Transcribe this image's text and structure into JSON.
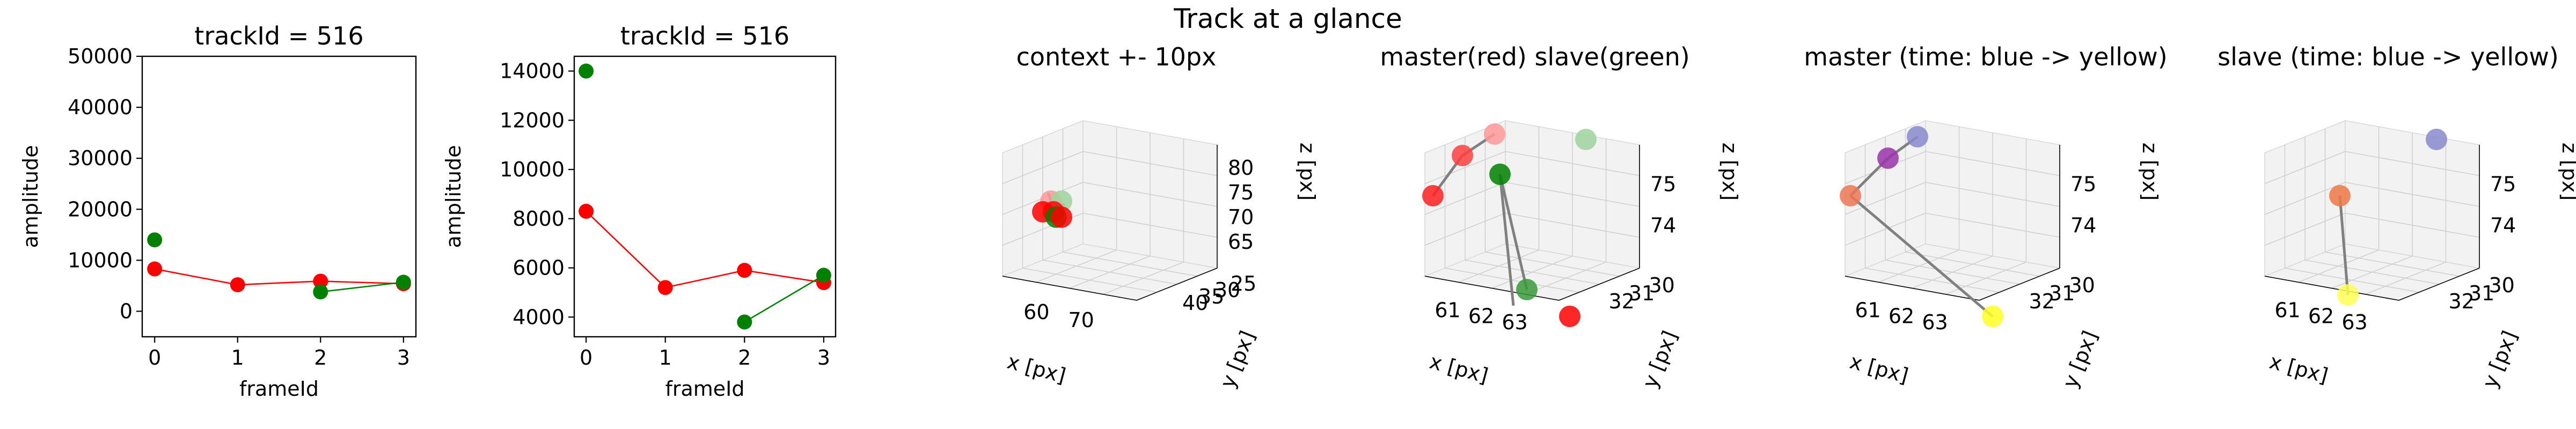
{
  "suptitle": "Track at a glance",
  "chart_data": [
    {
      "type": "line",
      "title": "trackId = 516",
      "xlabel": "frameId",
      "ylabel": "amplitude",
      "xlim": [
        -0.15,
        3.15
      ],
      "ylim": [
        -5000,
        50000
      ],
      "xticks": [
        0,
        1,
        2,
        3
      ],
      "yticks": [
        0,
        10000,
        20000,
        30000,
        40000,
        50000
      ],
      "series": [
        {
          "color": "#ff0000",
          "x": [
            0,
            1,
            2,
            3
          ],
          "y": [
            8300,
            5200,
            5900,
            5400
          ]
        },
        {
          "color": "#008000",
          "x": [
            2,
            3
          ],
          "y": [
            3800,
            5700
          ]
        }
      ],
      "isolated_points": [
        {
          "x": 0,
          "y": 14000,
          "color": "#008000"
        }
      ]
    },
    {
      "type": "line",
      "title": "trackId = 516",
      "xlabel": "frameId",
      "ylabel": "amplitude",
      "xlim": [
        -0.15,
        3.15
      ],
      "ylim": [
        3200,
        14600
      ],
      "xticks": [
        0,
        1,
        2,
        3
      ],
      "yticks": [
        4000,
        6000,
        8000,
        10000,
        12000,
        14000
      ],
      "series": [
        {
          "color": "#ff0000",
          "x": [
            0,
            1,
            2,
            3
          ],
          "y": [
            8300,
            5200,
            5900,
            5400
          ]
        },
        {
          "color": "#008000",
          "x": [
            2,
            3
          ],
          "y": [
            3800,
            5700
          ]
        }
      ],
      "isolated_points": [
        {
          "x": 0,
          "y": 14000,
          "color": "#008000"
        }
      ]
    },
    {
      "type": "scatter",
      "title": "context +- 10px",
      "xlabel": "x [px]",
      "ylabel": "y [px]",
      "zlabel": "z [px]",
      "xticks": [
        "60",
        "70"
      ],
      "yticks": [
        "25",
        "30",
        "35",
        "40"
      ],
      "zticks": [
        "65",
        "70",
        "75",
        "80"
      ]
    },
    {
      "type": "scatter",
      "title": "master(red) slave(green)",
      "xlabel": "x [px]",
      "ylabel": "y [px]",
      "zlabel": "z [px]",
      "xticks": [
        "61",
        "62",
        "63"
      ],
      "yticks": [
        "30",
        "31",
        "32"
      ],
      "zticks": [
        "74",
        "75"
      ]
    },
    {
      "type": "scatter",
      "title": "master (time: blue -> yellow)",
      "xlabel": "x [px]",
      "ylabel": "y [px]",
      "zlabel": "z [px]",
      "xticks": [
        "61",
        "62",
        "63"
      ],
      "yticks": [
        "30",
        "31",
        "32"
      ],
      "zticks": [
        "74",
        "75"
      ]
    },
    {
      "type": "scatter",
      "title": "slave (time: blue -> yellow)",
      "xlabel": "x [px]",
      "ylabel": "y [px]",
      "zlabel": "z [px]",
      "xticks": [
        "61",
        "62",
        "63"
      ],
      "yticks": [
        "30",
        "31",
        "32"
      ],
      "zticks": [
        "74",
        "75"
      ]
    }
  ]
}
